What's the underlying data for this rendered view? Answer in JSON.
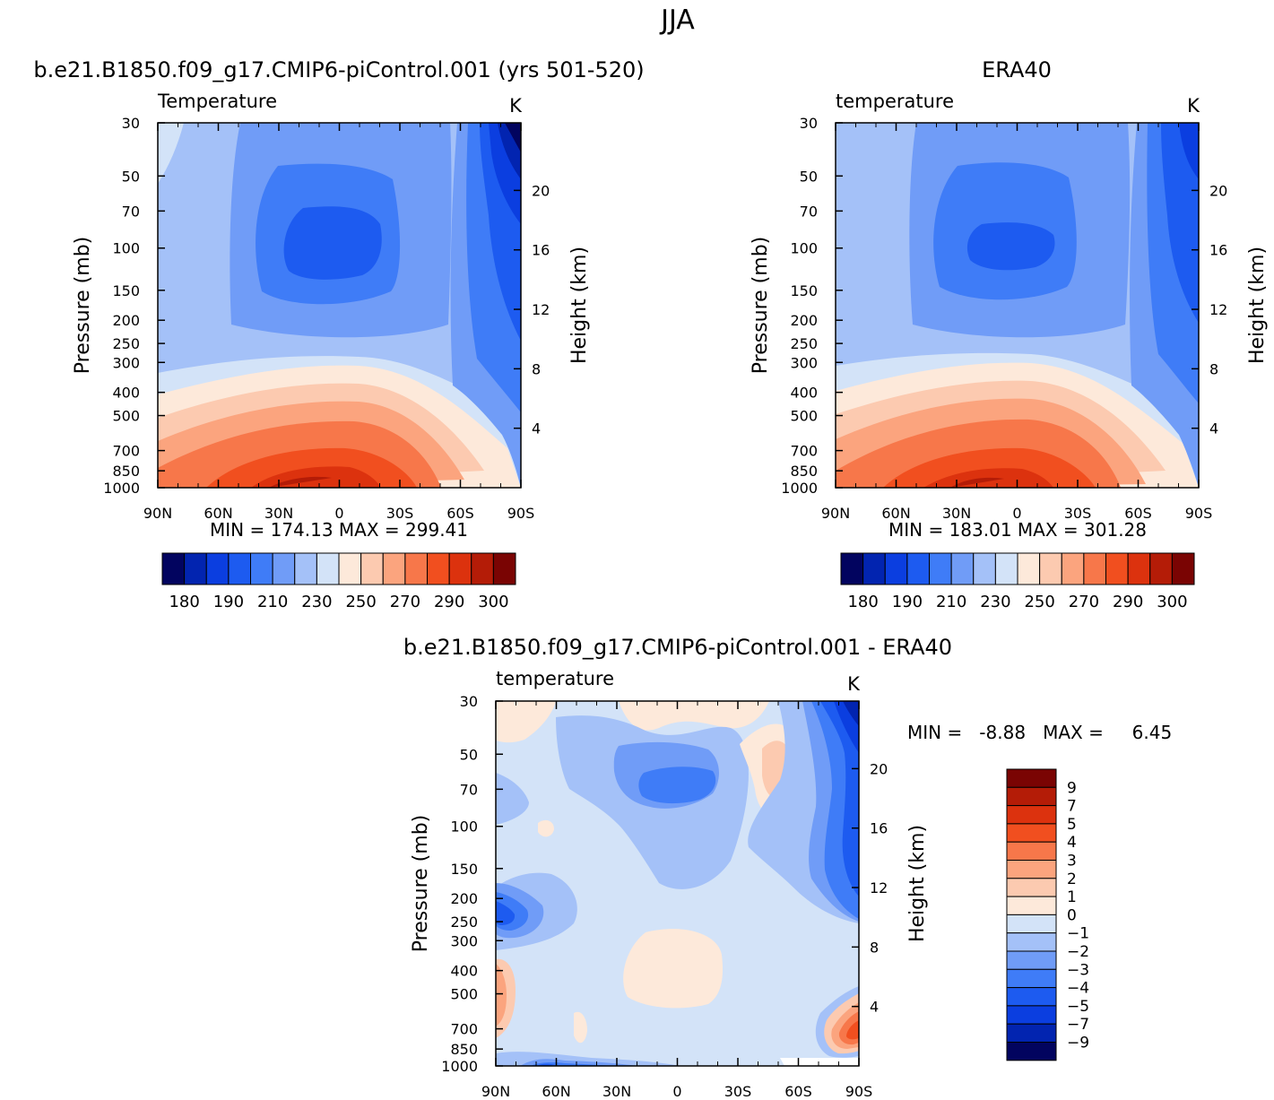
{
  "figure": {
    "season": "JJA"
  },
  "pressure_levels": [
    30,
    50,
    70,
    100,
    150,
    200,
    250,
    300,
    400,
    500,
    700,
    850,
    1000
  ],
  "height_ticks": [
    20,
    16,
    12,
    8,
    4
  ],
  "lat_ticks": [
    "90N",
    "60N",
    "30N",
    "0",
    "30S",
    "60S",
    "90S"
  ],
  "colors": {
    "abs_palette": [
      "#02045f",
      "#0224b0",
      "#0b3ee0",
      "#1d5bf0",
      "#3f7cf7",
      "#709cf7",
      "#a4c1f8",
      "#d3e3f8",
      "#fde9da",
      "#fccab0",
      "#fba47e",
      "#f7774a",
      "#f14f1f",
      "#dc320e",
      "#b41c07",
      "#7a0403"
    ],
    "diff_palette": [
      "#02045f",
      "#0224b0",
      "#0b3ee0",
      "#1d5bf0",
      "#3f7cf7",
      "#709cf7",
      "#a4c1f8",
      "#d3e3f8",
      "#fde9da",
      "#fccab0",
      "#fba47e",
      "#f7774a",
      "#f14f1f",
      "#dc320e",
      "#b41c07",
      "#7a0403"
    ]
  },
  "chart_data": [
    {
      "type": "heatmap",
      "title": "b.e21.B1850.f09_g17.CMIP6-piControl.001 (yrs 501-520)",
      "left_label": "Temperature",
      "units": "K",
      "xlabel": "",
      "ylabel": "Pressure (mb)",
      "y2label": "Height (km)",
      "stats": "MIN = 174.13   MAX = 299.41",
      "min": 174.13,
      "max": 299.41,
      "levels": [
        180,
        185,
        190,
        200,
        210,
        220,
        230,
        240,
        250,
        260,
        270,
        280,
        290,
        295,
        300
      ],
      "colorbar_labels": [
        "180",
        "190",
        "210",
        "230",
        "250",
        "270",
        "290",
        "300"
      ]
    },
    {
      "type": "heatmap",
      "title": "ERA40",
      "left_label": "temperature",
      "units": "K",
      "xlabel": "",
      "ylabel": "Pressure (mb)",
      "y2label": "Height (km)",
      "stats": "MIN = 183.01   MAX = 301.28",
      "min": 183.01,
      "max": 301.28,
      "levels": [
        180,
        185,
        190,
        200,
        210,
        220,
        230,
        240,
        250,
        260,
        270,
        280,
        290,
        295,
        300
      ],
      "colorbar_labels": [
        "180",
        "190",
        "210",
        "230",
        "250",
        "270",
        "290",
        "300"
      ]
    },
    {
      "type": "heatmap",
      "title": "b.e21.B1850.f09_g17.CMIP6-piControl.001 - ERA40",
      "left_label": "temperature",
      "units": "K",
      "xlabel": "",
      "ylabel": "Pressure (mb)",
      "y2label": "Height (km)",
      "stats": "MIN =   -8.88   MAX =     6.45",
      "min": -8.88,
      "max": 6.45,
      "levels": [
        -9,
        -7,
        -5,
        -4,
        -3,
        -2,
        -1,
        0,
        1,
        2,
        3,
        4,
        5,
        7,
        9
      ],
      "colorbar_labels": [
        "9",
        "7",
        "5",
        "4",
        "3",
        "2",
        "1",
        "0",
        "−1",
        "−2",
        "−3",
        "−4",
        "−5",
        "−7",
        "−9"
      ]
    }
  ]
}
